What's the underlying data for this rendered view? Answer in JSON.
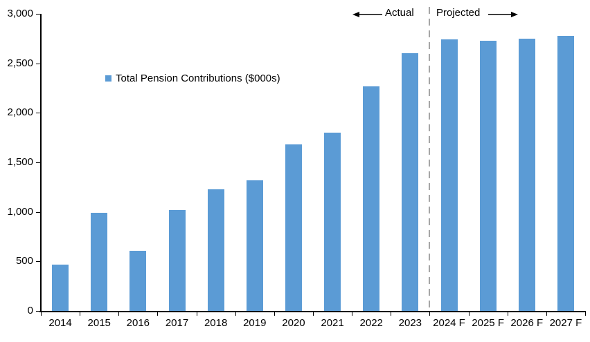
{
  "chart_data": {
    "type": "bar",
    "title": "",
    "categories": [
      "2014",
      "2015",
      "2016",
      "2017",
      "2018",
      "2019",
      "2020",
      "2021",
      "2022",
      "2023",
      "2024 F",
      "2025 F",
      "2026 F",
      "2027 F"
    ],
    "values": [
      470,
      990,
      610,
      1020,
      1230,
      1320,
      1680,
      1800,
      2270,
      2600,
      2740,
      2730,
      2750,
      2780
    ],
    "series_name": "Total Pension Contributions ($000s)",
    "xlabel": "",
    "ylabel": "",
    "ylim": [
      0,
      3000
    ],
    "yticks": [
      {
        "value": 0,
        "label": "0"
      },
      {
        "value": 500,
        "label": "500"
      },
      {
        "value": 1000,
        "label": "1,000"
      },
      {
        "value": 1500,
        "label": "1,500"
      },
      {
        "value": 2000,
        "label": "2,000"
      },
      {
        "value": 2500,
        "label": "2,500"
      },
      {
        "value": 3000,
        "label": "3,000"
      }
    ],
    "grid": "off",
    "legend": {
      "label": "Total Pension Contributions ($000s)",
      "marker_color": "#5B9BD5",
      "position": "inside-upper-left"
    },
    "colors": {
      "bar": "#5B9BD5",
      "axis": "#000000",
      "divider": "#A6A6A6",
      "text": "#000000"
    },
    "divider": {
      "after_category_index": 10,
      "style": "dashed"
    },
    "annotations": {
      "actual_label": "Actual",
      "projected_label": "Projected"
    }
  }
}
